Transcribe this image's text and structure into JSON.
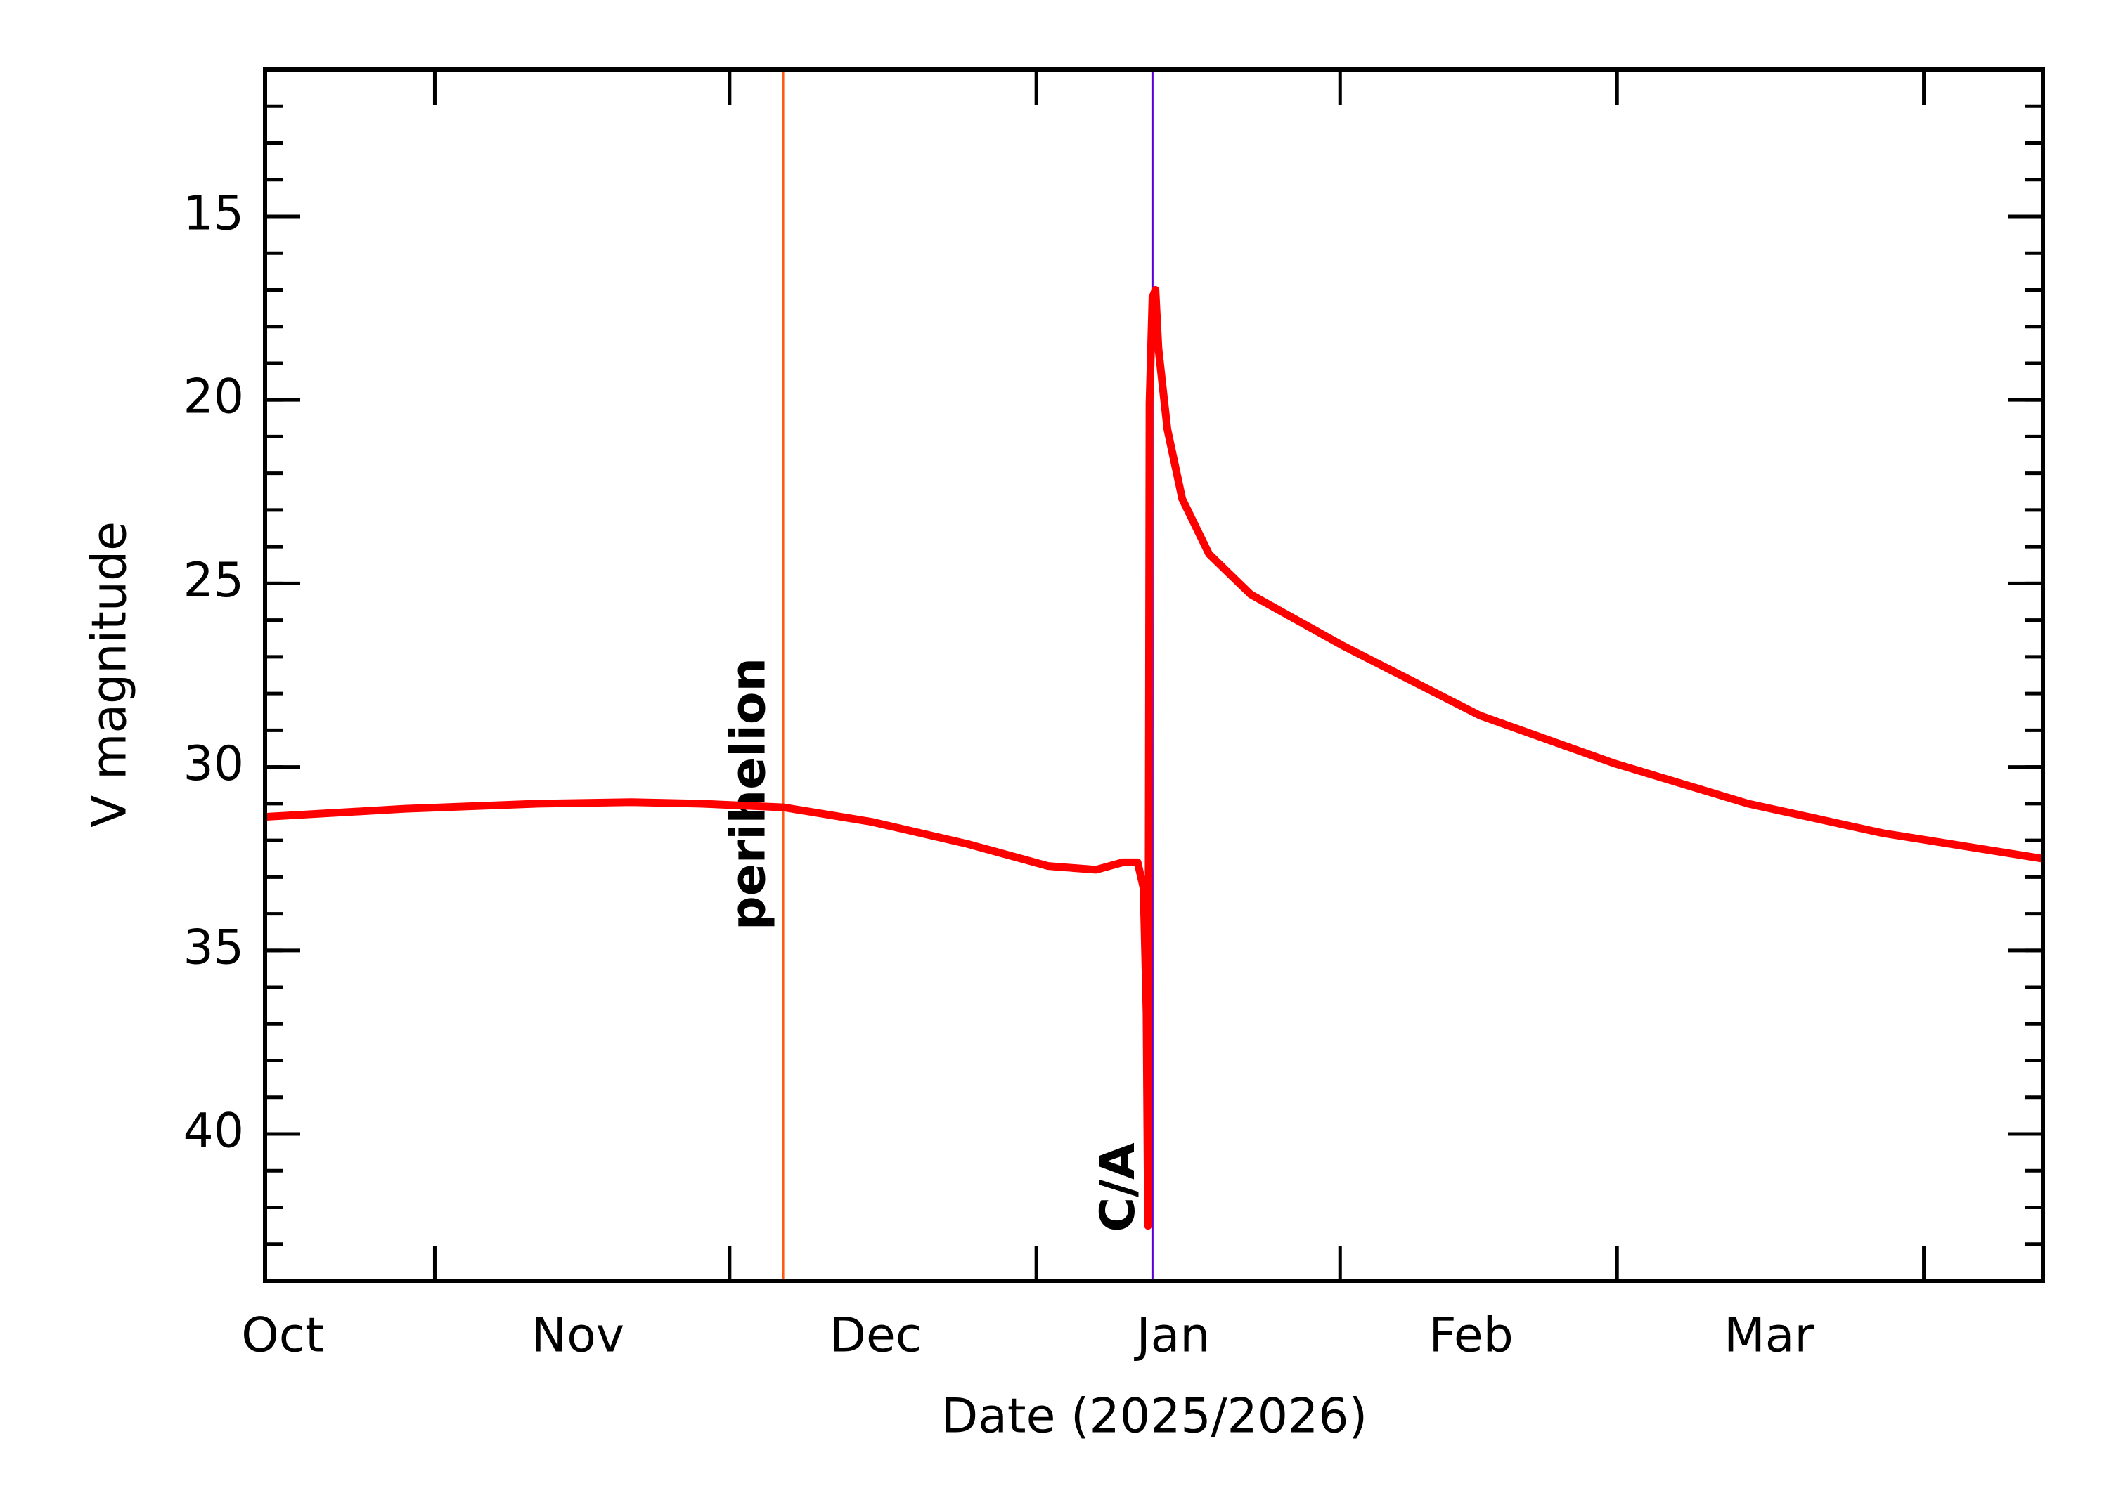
{
  "chart_data": {
    "type": "line",
    "xlabel": "Date (2025/2026)",
    "ylabel": "V magnitude",
    "xlim": [
      -0.05,
      5.92
    ],
    "ylim": [
      44,
      11
    ],
    "xticks": [
      {
        "value": 0,
        "label": "Oct"
      },
      {
        "value": 1,
        "label": "Nov"
      },
      {
        "value": 2,
        "label": "Dec"
      },
      {
        "value": 3,
        "label": "Jan"
      },
      {
        "value": 4,
        "label": "Feb"
      },
      {
        "value": 5,
        "label": "Mar"
      }
    ],
    "xminorticks": [
      0.52,
      1.51,
      2.54,
      3.56,
      4.49,
      5.52
    ],
    "yticks": [
      15,
      20,
      25,
      30,
      35,
      40
    ],
    "series": [
      {
        "color": "#ff0000",
        "x": [
          -0.05,
          0.42,
          0.87,
          1.18,
          1.41,
          1.69,
          1.99,
          2.31,
          2.58,
          2.74,
          2.83,
          2.88,
          2.9,
          2.91,
          2.915,
          2.92,
          2.93,
          2.94,
          2.95,
          2.98,
          3.03,
          3.12,
          3.26,
          3.57,
          4.03,
          4.48,
          4.93,
          5.38,
          5.92
        ],
        "values": [
          31.36,
          31.14,
          31.0,
          30.96,
          31.0,
          31.1,
          31.5,
          32.1,
          32.7,
          32.8,
          32.6,
          32.6,
          33.3,
          36.7,
          42.5,
          20.1,
          17.2,
          17.0,
          18.6,
          20.8,
          22.7,
          24.2,
          25.3,
          26.7,
          28.6,
          29.9,
          31.0,
          31.8,
          32.5
        ]
      }
    ],
    "annotations": [
      {
        "text": "perihelion",
        "x": 1.69,
        "color": "#ff5a14"
      },
      {
        "text": "C/A",
        "x": 2.93,
        "color": "#5a00dc"
      }
    ]
  }
}
